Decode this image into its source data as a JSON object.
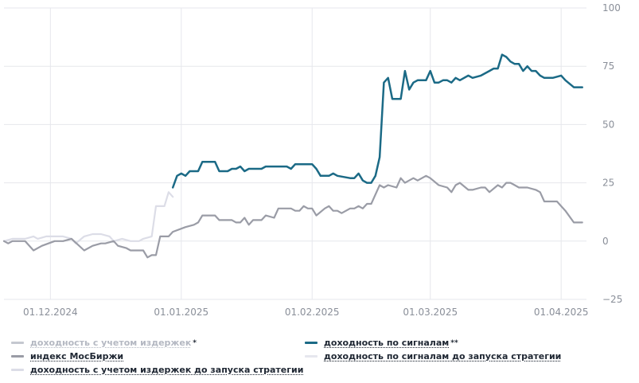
{
  "chart_data": {
    "type": "line",
    "y_ticks": [
      100,
      75,
      50,
      25,
      0,
      -25
    ],
    "y_tick_labels": [
      "100",
      "75",
      "50",
      "25",
      "0",
      "−25"
    ],
    "ylim": [
      -25,
      100
    ],
    "x_tick_labels": [
      "01.12.2024",
      "01.01.2025",
      "01.02.2025",
      "01.03.2025",
      "01.04.2025"
    ],
    "x_tick_dates": [
      "2024-12-01",
      "2025-01-01",
      "2025-02-01",
      "2025-03-01",
      "2025-04-01"
    ],
    "xlim": [
      "2024-11-20",
      "2025-04-07"
    ],
    "grid": true,
    "legend_position": "bottom",
    "series": [
      {
        "name": "доходность с учетом издержек",
        "mark": "*",
        "color": "#c5c8d0",
        "visible": false,
        "points": []
      },
      {
        "name": "индекс МосБиржи",
        "color": "#9a9ca6",
        "points": [
          [
            "2024-11-20",
            0
          ],
          [
            "2024-11-21",
            -1
          ],
          [
            "2024-11-22",
            0
          ],
          [
            "2024-11-25",
            0
          ],
          [
            "2024-11-27",
            -4
          ],
          [
            "2024-11-29",
            -2
          ],
          [
            "2024-12-02",
            0
          ],
          [
            "2024-12-04",
            0
          ],
          [
            "2024-12-06",
            1
          ],
          [
            "2024-12-09",
            -4
          ],
          [
            "2024-12-11",
            -2
          ],
          [
            "2024-12-13",
            -1
          ],
          [
            "2024-12-14",
            -1
          ],
          [
            "2024-12-16",
            0
          ],
          [
            "2024-12-17",
            -2
          ],
          [
            "2024-12-19",
            -3
          ],
          [
            "2024-12-20",
            -4
          ],
          [
            "2024-12-23",
            -4
          ],
          [
            "2024-12-24",
            -7
          ],
          [
            "2024-12-25",
            -6
          ],
          [
            "2024-12-26",
            -6
          ],
          [
            "2024-12-27",
            2
          ],
          [
            "2024-12-29",
            2
          ],
          [
            "2024-12-30",
            4
          ],
          [
            "2025-01-02",
            6
          ],
          [
            "2025-01-04",
            7
          ],
          [
            "2025-01-05",
            8
          ],
          [
            "2025-01-06",
            11
          ],
          [
            "2025-01-09",
            11
          ],
          [
            "2025-01-10",
            9
          ],
          [
            "2025-01-13",
            9
          ],
          [
            "2025-01-14",
            8
          ],
          [
            "2025-01-15",
            8
          ],
          [
            "2025-01-16",
            10
          ],
          [
            "2025-01-17",
            7
          ],
          [
            "2025-01-18",
            9
          ],
          [
            "2025-01-20",
            9
          ],
          [
            "2025-01-21",
            11
          ],
          [
            "2025-01-23",
            10
          ],
          [
            "2025-01-24",
            14
          ],
          [
            "2025-01-27",
            14
          ],
          [
            "2025-01-28",
            13
          ],
          [
            "2025-01-29",
            13
          ],
          [
            "2025-01-30",
            15
          ],
          [
            "2025-01-31",
            14
          ],
          [
            "2025-02-01",
            14
          ],
          [
            "2025-02-02",
            11
          ],
          [
            "2025-02-04",
            14
          ],
          [
            "2025-02-05",
            15
          ],
          [
            "2025-02-06",
            13
          ],
          [
            "2025-02-07",
            13
          ],
          [
            "2025-02-08",
            12
          ],
          [
            "2025-02-10",
            14
          ],
          [
            "2025-02-11",
            14
          ],
          [
            "2025-02-12",
            15
          ],
          [
            "2025-02-13",
            14
          ],
          [
            "2025-02-14",
            16
          ],
          [
            "2025-02-15",
            16
          ],
          [
            "2025-02-17",
            24
          ],
          [
            "2025-02-18",
            23
          ],
          [
            "2025-02-19",
            24
          ],
          [
            "2025-02-21",
            23
          ],
          [
            "2025-02-22",
            27
          ],
          [
            "2025-02-23",
            25
          ],
          [
            "2025-02-25",
            27
          ],
          [
            "2025-02-26",
            26
          ],
          [
            "2025-02-28",
            28
          ],
          [
            "2025-03-01",
            27
          ],
          [
            "2025-03-03",
            24
          ],
          [
            "2025-03-05",
            23
          ],
          [
            "2025-03-06",
            21
          ],
          [
            "2025-03-07",
            24
          ],
          [
            "2025-03-08",
            25
          ],
          [
            "2025-03-10",
            22
          ],
          [
            "2025-03-11",
            22
          ],
          [
            "2025-03-13",
            23
          ],
          [
            "2025-03-14",
            23
          ],
          [
            "2025-03-15",
            21
          ],
          [
            "2025-03-17",
            24
          ],
          [
            "2025-03-18",
            23
          ],
          [
            "2025-03-19",
            25
          ],
          [
            "2025-03-20",
            25
          ],
          [
            "2025-03-21",
            24
          ],
          [
            "2025-03-22",
            23
          ],
          [
            "2025-03-24",
            23
          ],
          [
            "2025-03-26",
            22
          ],
          [
            "2025-03-27",
            21
          ],
          [
            "2025-03-28",
            17
          ],
          [
            "2025-03-31",
            17
          ],
          [
            "2025-04-01",
            15
          ],
          [
            "2025-04-02",
            13
          ],
          [
            "2025-04-04",
            8
          ],
          [
            "2025-04-06",
            8
          ]
        ]
      },
      {
        "name": "доходность с учетом издержек до запуска стратегии",
        "color": "#dcdde7",
        "points": [
          [
            "2024-11-20",
            0
          ],
          [
            "2024-11-22",
            1
          ],
          [
            "2024-11-25",
            1
          ],
          [
            "2024-11-27",
            2
          ],
          [
            "2024-11-28",
            1
          ],
          [
            "2024-11-30",
            2
          ],
          [
            "2024-12-02",
            2
          ],
          [
            "2024-12-04",
            2
          ],
          [
            "2024-12-06",
            1
          ],
          [
            "2024-12-07",
            -1
          ],
          [
            "2024-12-09",
            2
          ],
          [
            "2024-12-11",
            3
          ],
          [
            "2024-12-13",
            3
          ],
          [
            "2024-12-15",
            2
          ],
          [
            "2024-12-16",
            0
          ],
          [
            "2024-12-18",
            1
          ],
          [
            "2024-12-20",
            0
          ],
          [
            "2024-12-22",
            0
          ],
          [
            "2024-12-23",
            1
          ],
          [
            "2024-12-25",
            2
          ],
          [
            "2024-12-26",
            15
          ],
          [
            "2024-12-27",
            15
          ],
          [
            "2024-12-28",
            15
          ],
          [
            "2024-12-29",
            21
          ],
          [
            "2024-12-30",
            19
          ]
        ]
      },
      {
        "name": "доходность по сигналам",
        "mark": "**",
        "color": "#1b6a86",
        "points": [
          [
            "2024-12-30",
            23
          ],
          [
            "2024-12-31",
            28
          ],
          [
            "2025-01-01",
            29
          ],
          [
            "2025-01-02",
            28
          ],
          [
            "2025-01-03",
            30
          ],
          [
            "2025-01-05",
            30
          ],
          [
            "2025-01-06",
            34
          ],
          [
            "2025-01-09",
            34
          ],
          [
            "2025-01-10",
            30
          ],
          [
            "2025-01-12",
            30
          ],
          [
            "2025-01-13",
            31
          ],
          [
            "2025-01-14",
            31
          ],
          [
            "2025-01-15",
            32
          ],
          [
            "2025-01-16",
            30
          ],
          [
            "2025-01-17",
            31
          ],
          [
            "2025-01-19",
            31
          ],
          [
            "2025-01-20",
            31
          ],
          [
            "2025-01-21",
            32
          ],
          [
            "2025-01-24",
            32
          ],
          [
            "2025-01-26",
            32
          ],
          [
            "2025-01-27",
            31
          ],
          [
            "2025-01-28",
            33
          ],
          [
            "2025-01-29",
            33
          ],
          [
            "2025-01-30",
            33
          ],
          [
            "2025-01-31",
            33
          ],
          [
            "2025-02-01",
            33
          ],
          [
            "2025-02-02",
            31
          ],
          [
            "2025-02-03",
            28
          ],
          [
            "2025-02-05",
            28
          ],
          [
            "2025-02-06",
            29
          ],
          [
            "2025-02-07",
            28
          ],
          [
            "2025-02-10",
            27
          ],
          [
            "2025-02-11",
            27
          ],
          [
            "2025-02-12",
            29
          ],
          [
            "2025-02-13",
            26
          ],
          [
            "2025-02-14",
            25
          ],
          [
            "2025-02-15",
            25
          ],
          [
            "2025-02-16",
            28
          ],
          [
            "2025-02-17",
            36
          ],
          [
            "2025-02-18",
            68
          ],
          [
            "2025-02-19",
            70
          ],
          [
            "2025-02-20",
            61
          ],
          [
            "2025-02-22",
            61
          ],
          [
            "2025-02-23",
            73
          ],
          [
            "2025-02-24",
            65
          ],
          [
            "2025-02-25",
            68
          ],
          [
            "2025-02-26",
            69
          ],
          [
            "2025-02-28",
            69
          ],
          [
            "2025-03-01",
            73
          ],
          [
            "2025-03-02",
            68
          ],
          [
            "2025-03-03",
            68
          ],
          [
            "2025-03-04",
            69
          ],
          [
            "2025-03-05",
            69
          ],
          [
            "2025-03-06",
            68
          ],
          [
            "2025-03-07",
            70
          ],
          [
            "2025-03-08",
            69
          ],
          [
            "2025-03-10",
            71
          ],
          [
            "2025-03-11",
            70
          ],
          [
            "2025-03-13",
            71
          ],
          [
            "2025-03-15",
            73
          ],
          [
            "2025-03-16",
            74
          ],
          [
            "2025-03-17",
            74
          ],
          [
            "2025-03-18",
            80
          ],
          [
            "2025-03-19",
            79
          ],
          [
            "2025-03-20",
            77
          ],
          [
            "2025-03-21",
            76
          ],
          [
            "2025-03-22",
            76
          ],
          [
            "2025-03-23",
            73
          ],
          [
            "2025-03-24",
            75
          ],
          [
            "2025-03-25",
            73
          ],
          [
            "2025-03-26",
            73
          ],
          [
            "2025-03-27",
            71
          ],
          [
            "2025-03-28",
            70
          ],
          [
            "2025-03-30",
            70
          ],
          [
            "2025-04-01",
            71
          ],
          [
            "2025-04-02",
            69
          ],
          [
            "2025-04-04",
            66
          ],
          [
            "2025-04-06",
            66
          ]
        ]
      },
      {
        "name": "доходность по сигналам до запуска стратегии",
        "color": "#e6e7ee",
        "visible": false,
        "points": []
      }
    ]
  },
  "legend": {
    "col1": [
      {
        "label": "доходность с учетом издержек",
        "suffix": "*",
        "swatch": "#c5c8d0",
        "muted": true
      },
      {
        "label": "индекс МосБиржи",
        "suffix": "",
        "swatch": "#9a9ca6",
        "muted": false
      },
      {
        "label": "доходность с учетом издержек до запуска стратегии",
        "suffix": "",
        "swatch": "#dcdde7",
        "muted": false
      }
    ],
    "col2": [
      {
        "label": "доходность по сигналам",
        "suffix": "**",
        "swatch": "#1b6a86",
        "muted": false
      },
      {
        "label": "доходность по сигналам до запуска стратегии",
        "suffix": "",
        "swatch": "#e6e7ee",
        "muted": false
      }
    ]
  }
}
